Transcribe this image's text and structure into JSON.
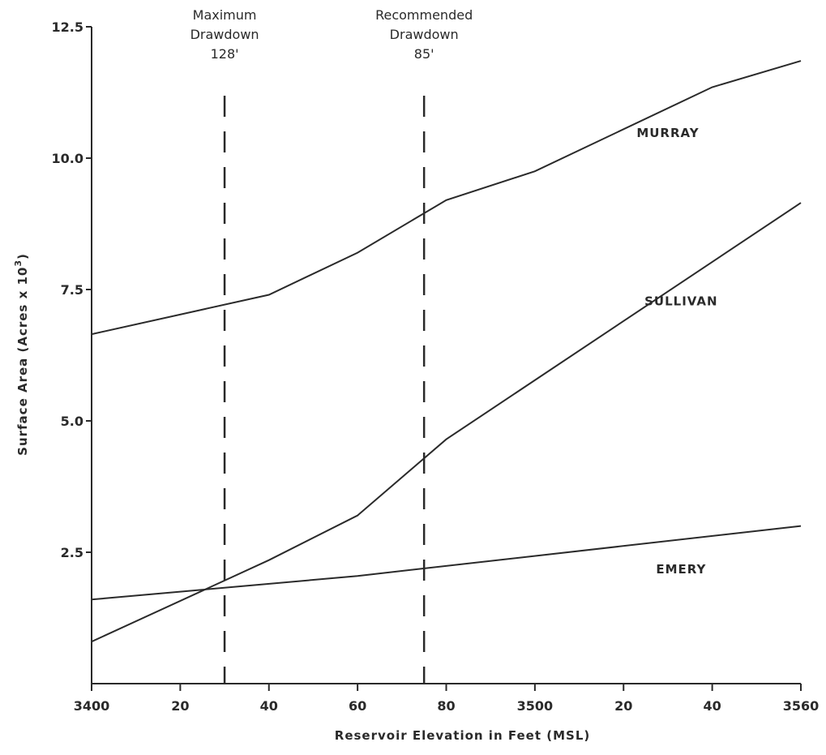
{
  "chart_data": {
    "type": "line",
    "xlabel": "Reservoir Elevation in Feet (MSL)",
    "ylabel_main": "Surface Area (Acres x 10",
    "ylabel_sup": "3",
    "ylabel_end": ")",
    "xlim": [
      3400,
      3560
    ],
    "ylim": [
      0,
      12.5
    ],
    "x_ticks": [
      {
        "value": 3400,
        "label": "3400"
      },
      {
        "value": 3420,
        "label": "20"
      },
      {
        "value": 3440,
        "label": "40"
      },
      {
        "value": 3460,
        "label": "60"
      },
      {
        "value": 3480,
        "label": "80"
      },
      {
        "value": 3500,
        "label": "3500"
      },
      {
        "value": 3520,
        "label": "20"
      },
      {
        "value": 3540,
        "label": "40"
      },
      {
        "value": 3560,
        "label": "3560"
      }
    ],
    "y_ticks": [
      {
        "value": 2.5,
        "label": "2.5"
      },
      {
        "value": 5.0,
        "label": "5.0"
      },
      {
        "value": 7.5,
        "label": "7.5"
      },
      {
        "value": 10.0,
        "label": "10.0"
      },
      {
        "value": 12.5,
        "label": "12.5"
      }
    ],
    "series": [
      {
        "name": "MURRAY",
        "label_at": [
          3530,
          10.4
        ],
        "x": [
          3400,
          3440,
          3460,
          3480,
          3500,
          3540,
          3560
        ],
        "y": [
          6.65,
          7.4,
          8.2,
          9.2,
          9.75,
          11.35,
          11.85
        ]
      },
      {
        "name": "SULLIVAN",
        "label_at": [
          3533,
          7.2
        ],
        "x": [
          3400,
          3440,
          3460,
          3480,
          3560
        ],
        "y": [
          0.8,
          2.35,
          3.2,
          4.65,
          9.15
        ]
      },
      {
        "name": "EMERY",
        "label_at": [
          3533,
          2.1
        ],
        "x": [
          3400,
          3460,
          3560
        ],
        "y": [
          1.6,
          2.05,
          3.0
        ]
      }
    ],
    "reference_lines": [
      {
        "x": 3430,
        "lines": [
          "Maximum",
          "Drawdown",
          "128'"
        ]
      },
      {
        "x": 3475,
        "lines": [
          "Recommended",
          "Drawdown",
          "85'"
        ]
      }
    ]
  }
}
